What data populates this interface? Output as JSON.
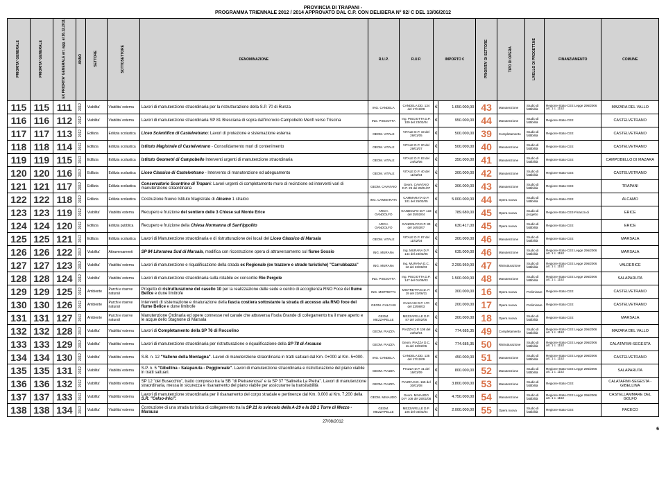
{
  "header": {
    "line1": "PROVINCIA DI TRAPANI -",
    "line2": "PROGRAMMA TRIENNALE 2012 / 2014 APPROVATO DAL C.P. CON DELIBERA N° 92/ C DEL 13/06/2012"
  },
  "columns": [
    "PRIORITA' GENERALE",
    "PRIORITA' GENERALE",
    "EX PRIORITA' GENERALE arr. agg. al 16.12.2011",
    "ANNO",
    "SETTORE",
    "SOTTOSETTORE",
    "DENOMINAZIONE",
    "R.U.P.",
    "R.U.P.",
    "IMPORTO €",
    "PRIORITA' DI SETTORE",
    "TIPO DI OPERA",
    "LIVELLO DI PROGETT.NE",
    "FINANZIAMENTO",
    "COMUNE"
  ],
  "rows": [
    {
      "p1": "115",
      "p2": "115",
      "p3": "111",
      "anno": "2012",
      "sett": "Viabilita'",
      "sub": "Viabilita' esterna",
      "denom": "Lavori di manutenzione straordinaria per la ristrutturazione della S.P. 70 di Runza",
      "rup1": "ING. CANDELA",
      "rup2": "CANDELA DD. 134 del 17/12/09",
      "imp": "1.650.000,00",
      "pr": "43",
      "tipo": "Manutenzione",
      "liv": "Studio di fattibilità",
      "fin": "Regione-Stato-CEE Legge 296/2006 art. 1 c. 1152",
      "com": "MAZARA DEL VALLO"
    },
    {
      "p1": "116",
      "p2": "116",
      "p3": "112",
      "anno": "2012",
      "sett": "Viabilita'",
      "sub": "Viabilita' esterna",
      "denom": "Lavori di manutenzione straordinaria SP 81 Bresciana di sopra dall'incrocio Campobello Menfi verso Triscina",
      "rup1": "ING. PISCIOTTA",
      "rup2": "Ing. PISCIOTTA D.P. 109 del 23/02/04",
      "imp": "950.000,00",
      "pr": "44",
      "tipo": "Manutenzione",
      "liv": "Studio di fattibilità",
      "fin": "Regione-Stato-CEE",
      "com": "CASTELVETRANO"
    },
    {
      "p1": "117",
      "p2": "117",
      "p3": "113",
      "anno": "2012",
      "sett": "Edilizia",
      "sub": "Edilizia scolastica",
      "denom": "<b><i>Liceo Scientifico di Castelvetrano</i></b>: Lavori di protezione e sistemazione esterna",
      "rup1": "GEOM. VITALE",
      "rup2": "VITALE D.P. 19 del 28/01/05",
      "imp": "500.000,00",
      "pr": "39",
      "tipo": "Completamento",
      "liv": "Studio di fattibilità",
      "fin": "Regione-Stato-CEE",
      "com": "CASTELVETRANO"
    },
    {
      "p1": "118",
      "p2": "118",
      "p3": "114",
      "anno": "2012",
      "sett": "Edilizia",
      "sub": "Edilizia scolastica",
      "denom": "<b><i>Istituto Magistrale di Castelvetrano</i></b> - Consolidamento muri di contenimento",
      "rup1": "GEOM. VITALE",
      "rup2": "VITALE D.P. 20 del 29/01/07",
      "imp": "500.000,00",
      "pr": "40",
      "tipo": "Manutenzione",
      "liv": "Studio di fattibilità",
      "fin": "Regione-Stato-CEE",
      "com": "CASTELVETRANO"
    },
    {
      "p1": "119",
      "p2": "119",
      "p3": "115",
      "anno": "2012",
      "sett": "Edilizia",
      "sub": "Edilizia scolastica",
      "denom": "<b><i>Istituto Geometri di Campobello</i></b> Interventi urgenti di manutenzione straordinaria",
      "rup1": "GEOM. VITALE",
      "rup2": "VITALE D.P. 83 del 24/02/06",
      "imp": "350.000,00",
      "pr": "41",
      "tipo": "Manutenzione",
      "liv": "Studio di fattibilità",
      "fin": "Regione-Stato-CEE",
      "com": "CAMPOBELLO DI MAZARA"
    },
    {
      "p1": "120",
      "p2": "120",
      "p3": "116",
      "anno": "2012",
      "sett": "Edilizia",
      "sub": "Edilizia scolastica",
      "denom": "<b><i>Liceo Classico di Castelvetrano</i></b> - Intervento di manutenzione ed adeguamento",
      "rup1": "GEOM. VITALE",
      "rup2": "VITALE D.P. 40 del 11/02/04",
      "imp": "300.000,00",
      "pr": "42",
      "tipo": "Manutenzione",
      "liv": "Studio di fattibilità",
      "fin": "Regione-Stato-CEE",
      "com": "CASTELVETRANO"
    },
    {
      "p1": "121",
      "p2": "121",
      "p3": "117",
      "anno": "2012",
      "sett": "Edilizia",
      "sub": "Edilizia scolastica",
      "denom": "<b><i>Conservatorio Scontrino di Trapan</i></b>i: Lavori urgenti di completamento muro di recinzione ed interventi vari di manutenzione straordinaria",
      "rup1": "GEOM. CAVATAIO",
      "rup2": "Geom. CAVATAIO D.P. 29 del 29/01/07",
      "imp": "306.000,00",
      "pr": "43",
      "tipo": "Manutenzione",
      "liv": "Studio di fattibilità",
      "fin": "Regione-Stato-CEE",
      "com": "TRAPANI"
    },
    {
      "p1": "122",
      "p2": "122",
      "p3": "118",
      "anno": "2012",
      "sett": "Edilizia",
      "sub": "Edilizia scolastica",
      "denom": "Costruzione Nuovo Istituto Magistrale di <b><i>Alcamo</i></b> 1 stralcio",
      "rup1": "ING. CAMMARATA",
      "rup2": "CAMMARATA D.P. 101 del 25/02/05",
      "imp": "5.000.000,00",
      "pr": "44",
      "tipo": "Opera nuova",
      "liv": "Studio di fattibilità",
      "fin": "Regione-Stato-CEE",
      "com": "ALCAMO"
    },
    {
      "p1": "123",
      "p2": "123",
      "p3": "119",
      "anno": "2012",
      "sett": "Viabilita'",
      "sub": "Viabilita' esterna",
      "denom": "Recupero e fruizione <b>del sentiero delle 3 Chiese sul Monte Erice</b>",
      "rup1": "ARCH. GANDOLFO",
      "rup2": "GANDOLFO D.P. 133 del 25/02/04",
      "imp": "789.680,00",
      "pr": "45",
      "tipo": "Opera nuova",
      "liv": "Studio di progetto",
      "fin": "Regione-Stato-CEE-Finanza di",
      "com": "ERICE"
    },
    {
      "p1": "124",
      "p2": "124",
      "p3": "120",
      "anno": "2012",
      "sett": "Edilizia",
      "sub": "Edilizia pubblica",
      "denom": "Recupero e fruizione della <b><i>Chiesa Normanna di Sant'Ippolito</i></b>",
      "rup1": "ARCH. GANDOLFO",
      "rup2": "GANDOLFO D.P. 80 del 16/03/07",
      "imp": "630.417,00",
      "pr": "45",
      "tipo": "Opera nuova",
      "liv": "Studio di fattibilità",
      "fin": "Regione-Stato-CEE",
      "com": "ERICE"
    },
    {
      "p1": "125",
      "p2": "125",
      "p3": "121",
      "anno": "2012",
      "sett": "Edilizia",
      "sub": "Edilizia scolastica",
      "denom": "Lavori di Manutenzione straordinaria e di ristrutturazione dei locali del <b><i>Liceo Classico di Marsala</i></b>",
      "rup1": "GEOM. VITALE",
      "rup2": "VITALE D.P. 87 del 11/02/04",
      "imp": "300.000,00",
      "pr": "46",
      "tipo": "Manutenzione",
      "liv": "Studio di fattibilità",
      "fin": "Regione-Stato-CEE",
      "com": "MARSALA"
    },
    {
      "p1": "126",
      "p2": "126",
      "p3": "122",
      "anno": "2012",
      "sett": "Viabilita'",
      "sub": "Attraversamenti",
      "denom": "<b><i>SP 84 Litoranea Sud di Marsala</i></b>, modifica con ricostruzione opera di attraversamento sul <b>fiume Sossio</b>",
      "rup1": "ING. MURANA",
      "rup2": "Ing. MURANA D.P. 144 del 23/02/06",
      "imp": "635.000,00",
      "pr": "46",
      "tipo": "Manutenzione",
      "liv": "Studio di fattibilità",
      "fin": "Regione-Stato-CEE Legge 296/2006 art. 1 c. 1152",
      "com": "MARSALA"
    },
    {
      "p1": "127",
      "p2": "127",
      "p3": "123",
      "anno": "2012",
      "sett": "Viabilita'",
      "sub": "Viabilita' esterna",
      "denom": "Lavori di manutenzione e riqualificazione della strada <b>ex Regionale (ex trazzere e strade turistiche) \"Carrubbazza\"</b>",
      "rup1": "ING. MURANA",
      "rup2": "Ing. MURANA D.C. 12 del 23/06/03",
      "imp": "2.299.950,00",
      "pr": "47",
      "tipo": "Ristrutturazione",
      "liv": "Studio di fattibilità",
      "fin": "Regione-Stato-CEE Legge 296/2006 art. 1 c. 1152",
      "com": "VALDERICE"
    },
    {
      "p1": "128",
      "p2": "128",
      "p3": "124",
      "anno": "2012",
      "sett": "Viabilita'",
      "sub": "Viabilita' esterna",
      "denom": "Lavori di manutenzione straordinaria sulla rotabile ex consortile <b>Rio Pergole</b>",
      "rup1": "ING. PISCIOTTA",
      "rup2": "Ing. PISCIOTTA D.P. 147 del 01/09/03",
      "imp": "1.500.000,00",
      "pr": "48",
      "tipo": "Manutenzione",
      "liv": "Studio di fattibilità",
      "fin": "Regione-Stato-CEE Legge 296/2006 art. 1 c. 1152",
      "com": "SALAPARUTA"
    },
    {
      "p1": "129",
      "p2": "129",
      "p3": "125",
      "anno": "2012",
      "sett": "Ambiente",
      "sub": "Parchi e riserve naturali",
      "denom": "Progetto di <b>ristrutturazione del casello 10</b> per la realizzazione delle sede e centro di accoglienza RNO Foce del <b>fiume Belice</b> e dune limitrofe",
      "rup1": "ING. MISTRETTA",
      "rup2": "MISTRETTA D.D. P. 19 del 21/06/11",
      "imp": "300.000,00",
      "pr": "16",
      "tipo": "Opera nuova",
      "liv": "Preliminare",
      "fin": "Regione-Stato-CEE",
      "com": "CASTELVETRANO"
    },
    {
      "p1": "130",
      "p2": "130",
      "p3": "126",
      "anno": "2012",
      "sett": "Ambiente",
      "sub": "Parchi e riserve naturali",
      "denom": "Interventi di sistemazione e rinaturazione della <b>fascia costiera sottostante la strada di accesso alla RNO foce del fiume Belice</b> e dune limitrofe",
      "rup1": "GEOM. CULCASI",
      "rup2": "CULCASI D.P. 170 del 23/08/03",
      "imp": "200.000,00",
      "pr": "17",
      "tipo": "Opera nuova",
      "liv": "Preliminare",
      "fin": "Regione-Stato-CEE",
      "com": "CASTELVETRANO"
    },
    {
      "p1": "131",
      "p2": "131",
      "p3": "127",
      "anno": "2012",
      "sett": "Ambiente",
      "sub": "Parchi e riserve naturali",
      "denom": "Manutenzione Ordinaria ed opere connesse nel canale che attraversa l'Isola Grande di collegamento tra il mare aperto e le acque dello Stagnone di Marsala",
      "rup1": "GEOM. MEZZAPELLE",
      "rup2": "MEZZAPELLE D.P. 87 del 16/02/06",
      "imp": "300.000,00",
      "pr": "18",
      "tipo": "Opera nuova",
      "liv": "Studio di fattibilità",
      "fin": "Regione-Stato-CEE",
      "com": "MARSALA"
    },
    {
      "p1": "132",
      "p2": "132",
      "p3": "128",
      "anno": "2012",
      "sett": "Viabilita'",
      "sub": "Viabilita' esterna",
      "denom": "Lavori di <b>Completamento della SP 76 di Roccolino</b>",
      "rup1": "GEOM. PIAZZA",
      "rup2": "PIAZZA D.P. 108 del 23/02/04",
      "imp": "774.685,35",
      "pr": "49",
      "tipo": "Completamento",
      "liv": "Studio di fattibilità",
      "fin": "Regione-Stato-CEE Legge 296/2006 art. 1 c. 1152",
      "com": "MAZARA DEL VALLO"
    },
    {
      "p1": "133",
      "p2": "133",
      "p3": "129",
      "anno": "2012",
      "sett": "Viabilita'",
      "sub": "Viabilita' esterna",
      "denom": "Lavori di manutenzione straordinaria per ristrutturazione e riqualificazione della <b><i>SP 78 di Arcauso</i></b>",
      "rup1": "GEOM. PIAZZA",
      "rup2": "Geom. PIAZZA D.C. 11 del 23/02/06",
      "imp": "774.685,35",
      "pr": "50",
      "tipo": "Ristrutturazione",
      "liv": "Studio di fattibilità",
      "fin": "Regione-Stato-CEE Legge 296/2006 art. 1 c. 1152",
      "com": "CALATAFIMI-SEGESTA"
    },
    {
      "p1": "134",
      "p2": "134",
      "p3": "130",
      "anno": "2012",
      "sett": "Viabilita'",
      "sub": "Viabilita' esterna",
      "denom": "S.B. n. 12 <b>\"Vallone della Montagna\"</b>. Lavori di manutenzione straordinaria in tratti saltuari dal Km. 0+000 al Km. 5+000.",
      "rup1": "ING. CANDELA",
      "rup2": "CANDELA DD. 135 del 17/12/09",
      "imp": "450.000,00",
      "pr": "51",
      "tipo": "Manutenzione",
      "liv": "Studio di fattibilità",
      "fin": "Regione-Stato-CEE Legge 296/2006 art. 1 c. 1152",
      "com": "CASTELVETRANO"
    },
    {
      "p1": "135",
      "p2": "135",
      "p3": "131",
      "anno": "2012",
      "sett": "Viabilita'",
      "sub": "Viabilita' esterna",
      "denom": "S.P. n. 5 <b>\"Gibellina - Salaparuta - Poggioreale\"</b>. Lavori di manutenzione straordinaria e ristrutturazione del piano viabile in tratti saltuari.",
      "rup1": "GEOM. PIAZZA",
      "rup2": "PIAZZA D.P. 41 del 16/01/09",
      "imp": "800.000,00",
      "pr": "52",
      "tipo": "Manutenzione",
      "liv": "Studio di fattibilità",
      "fin": "Regione-Stato-CEE Legge 296/2006 art. 1 c. 1152",
      "com": "SALAPARUTA"
    },
    {
      "p1": "136",
      "p2": "136",
      "p3": "132",
      "anno": "2012",
      "sett": "Viabilita'",
      "sub": "Viabilita' esterna",
      "denom": "SP 12 \"del Busecchio\", tratto compreso tra la SB \"di Pietrarenosa\" e la SP 37 \"Salinella La Pietra\". Lavori di manutenzione straordinaria, messa in sicurezza e risanamento del piano viabile per assicurarne la transitabilità",
      "rup1": "GEOM. PIAZZA",
      "rup2": "PIAZZA D.D. 165 del 30/01/08",
      "imp": "3.800.000,00",
      "pr": "53",
      "tipo": "Manutenzione",
      "liv": "Studio di fattibilità",
      "fin": "Regione-Stato-CEE",
      "com": "CALATAFIMI-SEGESTA - GIBELLINA"
    },
    {
      "p1": "137",
      "p2": "137",
      "p3": "133",
      "anno": "2012",
      "sett": "Viabilita'",
      "sub": "Viabilita' esterna",
      "denom": "Lavori di manutenzione straordinaria per il risanamento del corpo stradale e pertinenze dal Km. 0,000 al Km. 7,200 della <b><i>S.R. \"Celso-Inici\".</i></b>",
      "rup1": "GEOM. MINAUDO",
      "rup2": "Geom. MINAUDO D.P. 108 del 25/01/08",
      "imp": "4.750.000,00",
      "pr": "54",
      "tipo": "Manutenzione",
      "liv": "Studio di fattibilità",
      "fin": "Regione-Stato-CEE Legge 296/2006 art. 1 c. 1152",
      "com": "CASTELLAMMARE DEL GOLFO"
    },
    {
      "p1": "138",
      "p2": "138",
      "p3": "134",
      "anno": "2012",
      "sett": "Viabilita'",
      "sub": "Viabilita' esterna",
      "denom": "Costruzione di una strada turistica di collegamento tra la <b><i>SP 21 lo svincolo della A-29 e la SB 1 Torre di Mezzo - Marausa</i></b>",
      "rup1": "GEOM. MEZZAPELLE",
      "rup2": "MEZZAPELLE D.P. 106 del 03/02/04",
      "imp": "2.000.000,00",
      "pr": "55",
      "tipo": "Opera nuova",
      "liv": "Studio di fattibilità",
      "fin": "Regione-Stato-CEE",
      "com": "PACECO"
    }
  ],
  "footer": {
    "date": "27/08/2012",
    "page": "6"
  }
}
